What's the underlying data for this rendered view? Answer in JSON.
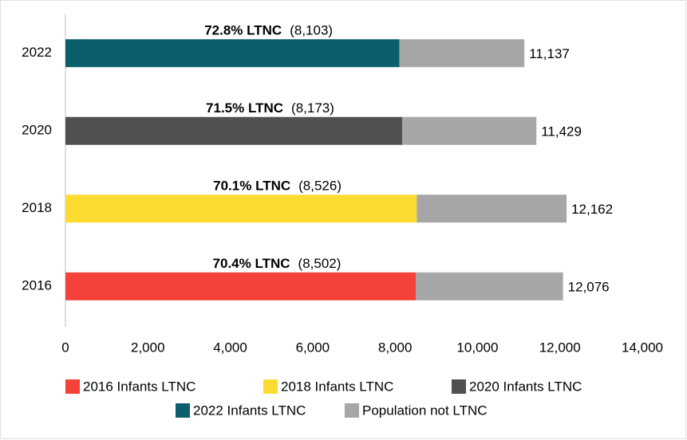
{
  "chart_data": {
    "type": "stacked-barh",
    "categories": [
      "2022",
      "2020",
      "2018",
      "2016"
    ],
    "series": [
      {
        "name": "2016 Infants LTNC",
        "color": "#f4413a",
        "values": [
          null,
          null,
          null,
          8502
        ],
        "value_labels": [
          null,
          null,
          null,
          "(8,502)"
        ]
      },
      {
        "name": "2018 Infants LTNC",
        "color": "#fddc32",
        "values": [
          null,
          null,
          8526,
          null
        ],
        "value_labels": [
          null,
          null,
          "(8,526)",
          null
        ]
      },
      {
        "name": "2020 Infants LTNC",
        "color": "#505050",
        "values": [
          null,
          8173,
          null,
          null
        ],
        "value_labels": [
          null,
          "(8,173)",
          null,
          null
        ]
      },
      {
        "name": "2022 Infants LTNC",
        "color": "#0b5e6c",
        "values": [
          8103,
          null,
          null,
          null
        ],
        "value_labels": [
          "(8,103)",
          null,
          null,
          null
        ]
      },
      {
        "name": "Population not LTNC",
        "color": "#a6a6a6",
        "values": [
          3034,
          3256,
          3636,
          3574
        ]
      }
    ],
    "annotations": [
      "72.8% LTNC",
      "71.5% LTNC",
      "70.1% LTNC",
      "70.4% LTNC"
    ],
    "totals": [
      {
        "value": 11137,
        "label": "11,137"
      },
      {
        "value": 11429,
        "label": "11,429"
      },
      {
        "value": 12162,
        "label": "12,162"
      },
      {
        "value": 12076,
        "label": "12,076"
      }
    ],
    "xlim": [
      0,
      14000
    ],
    "xticks": [
      0,
      {
        "value": 2000,
        "label": "2,000"
      },
      {
        "value": 4000,
        "label": "4,000"
      },
      {
        "value": 6000,
        "label": "6,000"
      },
      {
        "value": 8000,
        "label": "8,000"
      },
      {
        "value": 10000,
        "label": "10,000"
      },
      {
        "value": 12000,
        "label": "12,000"
      },
      {
        "value": 14000,
        "label": "14,000"
      }
    ],
    "grid": false,
    "legend": "bottom"
  }
}
